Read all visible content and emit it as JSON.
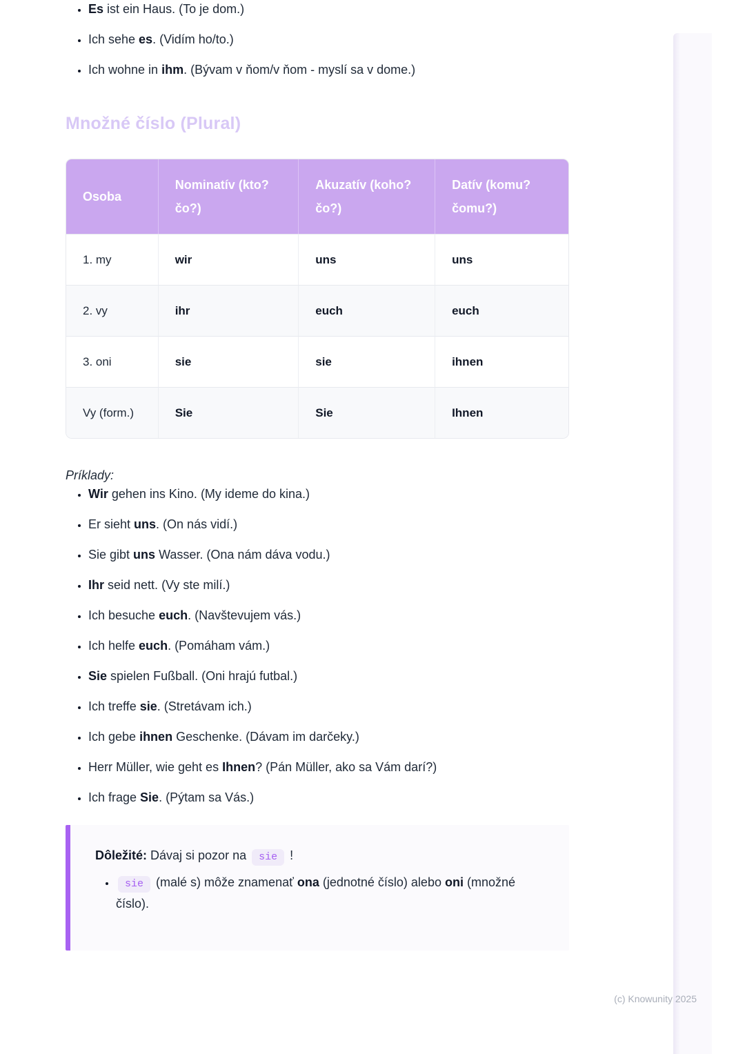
{
  "page": {
    "copyright": "(c) Knowunity 2025"
  },
  "colors": {
    "accent": "#a862f2",
    "heading_text": "#d8c8f6",
    "table_header_bg": "#caa7ef",
    "callout_bg": "#fbfafd",
    "code_chip_bg": "#f0ebf9",
    "code_chip_text": "#a55ef2"
  },
  "intro_bullets": [
    {
      "segments": [
        {
          "b": 1,
          "t": "Es"
        },
        {
          "t": " ist ein Haus. (To je dom.)"
        }
      ]
    },
    {
      "segments": [
        {
          "t": "Ich sehe "
        },
        {
          "b": 1,
          "t": "es"
        },
        {
          "t": ". (Vidím ho/to.)"
        }
      ]
    },
    {
      "segments": [
        {
          "t": "Ich wohne in "
        },
        {
          "b": 1,
          "t": "ihm"
        },
        {
          "t": ". (Bývam v ňom/v ňom - myslí sa v dome.)"
        }
      ]
    }
  ],
  "section": {
    "heading": "Množné číslo (Plural)"
  },
  "table": {
    "headers": [
      "Osoba",
      "Nominatív (kto? čo?)",
      "Akuzatív (koho? čo?)",
      "Datív (komu? čomu?)"
    ],
    "rows": [
      [
        "1. my",
        "wir",
        "uns",
        "uns"
      ],
      [
        "2. vy",
        "ihr",
        "euch",
        "euch"
      ],
      [
        "3. oni",
        "sie",
        "sie",
        "ihnen"
      ],
      [
        "Vy (form.)",
        "Sie",
        "Sie",
        "Ihnen"
      ]
    ]
  },
  "examples_label": "Príklady:",
  "examples": [
    {
      "segments": [
        {
          "b": 1,
          "t": "Wir"
        },
        {
          "t": " gehen ins Kino. (My ideme do kina.)"
        }
      ]
    },
    {
      "segments": [
        {
          "t": "Er sieht "
        },
        {
          "b": 1,
          "t": "uns"
        },
        {
          "t": ". (On nás vidí.)"
        }
      ]
    },
    {
      "segments": [
        {
          "t": "Sie gibt "
        },
        {
          "b": 1,
          "t": "uns"
        },
        {
          "t": " Wasser. (Ona nám dáva vodu.)"
        }
      ]
    },
    {
      "segments": [
        {
          "b": 1,
          "t": "Ihr"
        },
        {
          "t": " seid nett. (Vy ste milí.)"
        }
      ]
    },
    {
      "segments": [
        {
          "t": "Ich besuche "
        },
        {
          "b": 1,
          "t": "euch"
        },
        {
          "t": ". (Navštevujem vás.)"
        }
      ]
    },
    {
      "segments": [
        {
          "t": "Ich helfe "
        },
        {
          "b": 1,
          "t": "euch"
        },
        {
          "t": ". (Pomáham vám.)"
        }
      ]
    },
    {
      "segments": [
        {
          "b": 1,
          "t": "Sie"
        },
        {
          "t": " spielen Fußball. (Oni hrajú futbal.)"
        }
      ]
    },
    {
      "segments": [
        {
          "t": "Ich treffe "
        },
        {
          "b": 1,
          "t": "sie"
        },
        {
          "t": ". (Stretávam ich.)"
        }
      ]
    },
    {
      "segments": [
        {
          "t": "Ich gebe "
        },
        {
          "b": 1,
          "t": "ihnen"
        },
        {
          "t": " Geschenke. (Dávam im darčeky.)"
        }
      ]
    },
    {
      "segments": [
        {
          "t": "Herr Müller, wie geht es "
        },
        {
          "b": 1,
          "t": "Ihnen"
        },
        {
          "t": "? (Pán Müller, ako sa Vám darí?)"
        }
      ]
    },
    {
      "segments": [
        {
          "t": "Ich frage "
        },
        {
          "b": 1,
          "t": "Sie"
        },
        {
          "t": ". (Pýtam sa Vás.)"
        }
      ]
    }
  ],
  "callout": {
    "title_segments": [
      {
        "b": 1,
        "t": "Dôležité:"
      },
      {
        "t": " Dávaj si pozor na "
      },
      {
        "code": 1,
        "t": "sie"
      },
      {
        "t": " !"
      }
    ],
    "bullets": [
      {
        "segments": [
          {
            "code": 1,
            "t": "sie"
          },
          {
            "t": " (malé s) môže znamenať "
          },
          {
            "b": 1,
            "t": "ona"
          },
          {
            "t": " (jednotné číslo) alebo "
          },
          {
            "b": 1,
            "t": "oni"
          },
          {
            "t": " (množné číslo)."
          }
        ]
      }
    ]
  }
}
